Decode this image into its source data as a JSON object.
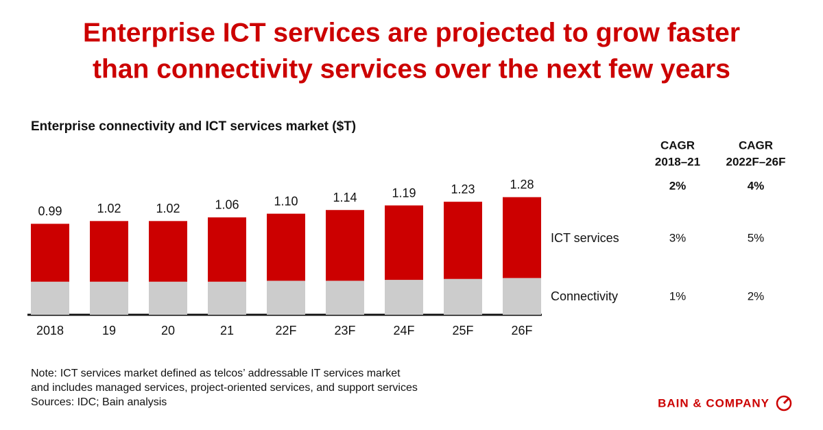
{
  "chart_data": {
    "type": "bar",
    "stacked": true,
    "title": [
      "Enterprise ICT services are projected to grow faster",
      "than connectivity services over the next few years"
    ],
    "subtitle": "Enterprise connectivity and ICT services market ($T)",
    "categories": [
      "2018",
      "19",
      "20",
      "21",
      "22F",
      "23F",
      "24F",
      "25F",
      "26F"
    ],
    "totals": [
      0.99,
      1.02,
      1.02,
      1.06,
      1.1,
      1.14,
      1.19,
      1.23,
      1.28
    ],
    "total_labels": [
      "0.99",
      "1.02",
      "1.02",
      "1.06",
      "1.10",
      "1.14",
      "1.19",
      "1.23",
      "1.28"
    ],
    "series": [
      {
        "name": "Connectivity",
        "color": "#cccccc",
        "values": [
          0.36,
          0.36,
          0.36,
          0.36,
          0.37,
          0.37,
          0.38,
          0.39,
          0.4
        ],
        "cagr": [
          "1%",
          "2%"
        ]
      },
      {
        "name": "ICT services",
        "color": "#cc0000",
        "values": [
          0.63,
          0.66,
          0.66,
          0.7,
          0.73,
          0.77,
          0.81,
          0.84,
          0.88
        ],
        "cagr": [
          "3%",
          "5%"
        ]
      }
    ],
    "cagr_headers": [
      [
        "CAGR",
        "2018–21"
      ],
      [
        "CAGR",
        "2022F–26F"
      ]
    ],
    "cagr_total": [
      "2%",
      "4%"
    ],
    "notes": [
      "Note: ICT services market defined as telcos’ addressable IT services market",
      "and includes managed services, project-oriented services, and support services",
      "Sources: IDC; Bain analysis"
    ]
  },
  "brand": "BAIN & COMPANY"
}
